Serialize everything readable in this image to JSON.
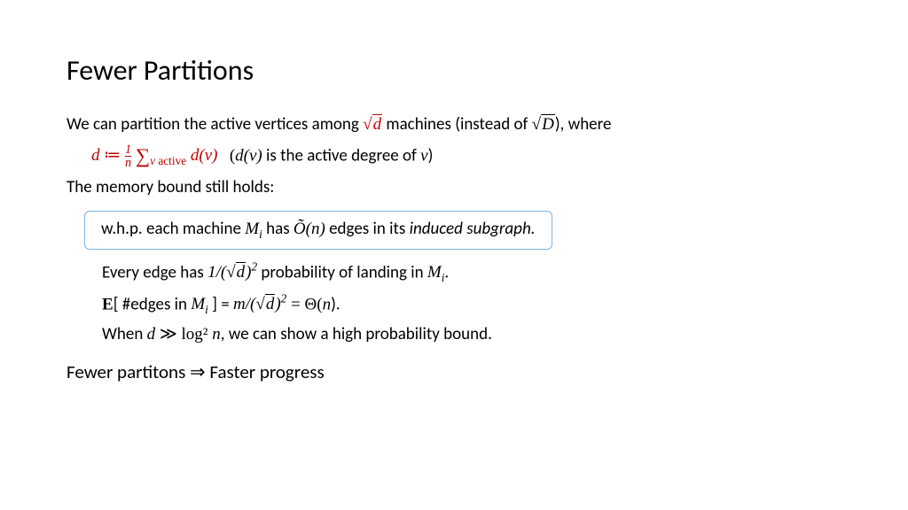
{
  "title": "Fewer Partitions",
  "p1_a": "We can partition the active vertices among ",
  "p1_b": " machines (instead of ",
  "p1_c": "), where",
  "def_a": " (",
  "def_b": " is the active degree of ",
  "def_c": ")",
  "p2": "The memory bound still holds:",
  "box_a": "w.h.p. each machine ",
  "box_b": " has ",
  "box_c": " edges in its ",
  "box_d": "induced subgraph.",
  "e1_a": "Every edge has ",
  "e1_b": " probability of landing in ",
  "e1_c": ".",
  "e2_a": "[ #edges in ",
  "e2_b": " ] = ",
  "e2_c": " = Θ(",
  "e2_d": ").",
  "e3_a": "When ",
  "e3_b": ", we can show a high probability bound.",
  "conclusion_a": "Fewer partitons ⇒ Faster progress",
  "sym": {
    "d": "d",
    "D": "D",
    "n": "n",
    "m": "m",
    "v": "v",
    "one": "1",
    "active": " active",
    "dv": "d(v)",
    "Mi": "M",
    "i": "i",
    "Otilde": "Õ",
    "E": "E",
    "log2n": "log² ",
    "gg": " ≫ ",
    "coloneq": " ≔ "
  }
}
